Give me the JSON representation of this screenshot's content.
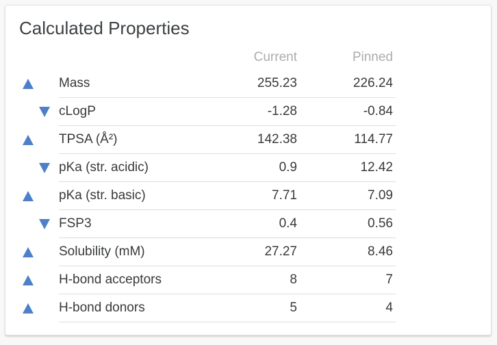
{
  "panel": {
    "title": "Calculated Properties"
  },
  "table": {
    "columns": {
      "current": "Current",
      "pinned": "Pinned"
    },
    "rows": [
      {
        "trend": "up",
        "label": "Mass",
        "current": "255.23",
        "pinned": "226.24"
      },
      {
        "trend": "down",
        "label": "cLogP",
        "current": "-1.28",
        "pinned": "-0.84"
      },
      {
        "trend": "up",
        "label": "TPSA (Å²)",
        "current": "142.38",
        "pinned": "114.77"
      },
      {
        "trend": "down",
        "label": "pKa (str. acidic)",
        "current": "0.9",
        "pinned": "12.42"
      },
      {
        "trend": "up",
        "label": "pKa (str. basic)",
        "current": "7.71",
        "pinned": "7.09"
      },
      {
        "trend": "down",
        "label": "FSP3",
        "current": "0.4",
        "pinned": "0.56"
      },
      {
        "trend": "up",
        "label": "Solubility (mM)",
        "current": "27.27",
        "pinned": "8.46"
      },
      {
        "trend": "up",
        "label": "H-bond acceptors",
        "current": "8",
        "pinned": "7"
      },
      {
        "trend": "up",
        "label": "H-bond donors",
        "current": "5",
        "pinned": "4"
      }
    ]
  },
  "colors": {
    "trend_arrow": "#4d80c8",
    "title_text": "#3c4043",
    "header_text": "#aaacae",
    "body_text": "#37393a"
  }
}
